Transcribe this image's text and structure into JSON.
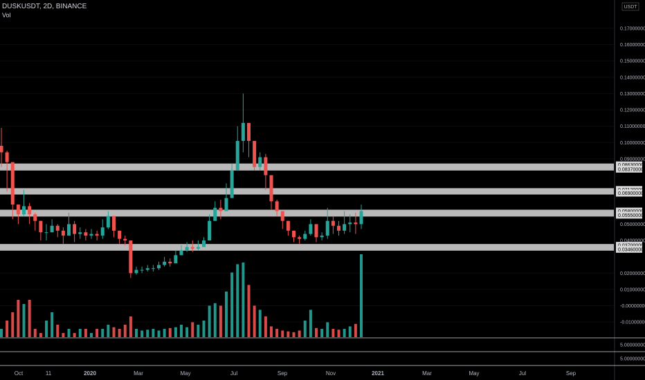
{
  "header": {
    "symbol_line": "DUSKUSDT, 2D, BINANCE",
    "volume_label": "Vol"
  },
  "axis": {
    "currency": "USDT"
  },
  "colors": {
    "up": "#26a69a",
    "down": "#ef5350",
    "zone": "#d9d9d9",
    "volume_up": "#26a69a",
    "volume_down": "#ef5350"
  },
  "chart_data": {
    "type": "candlestick",
    "symbol": "DUSKUSDT",
    "interval": "2D",
    "exchange": "BINANCE",
    "y_ticks": [
      "0.17000000",
      "0.16000000",
      "0.15000000",
      "0.14000000",
      "0.13000000",
      "0.12000000",
      "0.11000000",
      "0.10000000",
      "0.09000000",
      "0.02000000",
      "0.01000000",
      "-0.00000000",
      "-0.01000000"
    ],
    "y_tick_values": [
      0.17,
      0.16,
      0.15,
      0.14,
      0.13,
      0.12,
      0.11,
      0.1,
      0.09,
      0.02,
      0.01,
      0.0,
      -0.01
    ],
    "partially_hidden_ticks": [
      {
        "label": "0.05000000",
        "value": 0.05
      },
      {
        "label": "0.04000000",
        "value": 0.04
      }
    ],
    "ylim": [
      -0.015,
      0.178
    ],
    "zones": [
      {
        "upper": "0.08630000",
        "lower": "0.08370000",
        "upper_value": 0.0863,
        "lower_value": 0.0837
      },
      {
        "upper": "0.07120000",
        "lower": "0.06900000",
        "upper_value": 0.0712,
        "lower_value": 0.069
      },
      {
        "upper": "0.05800000",
        "lower": "0.05550000",
        "upper_value": 0.058,
        "lower_value": 0.0555
      },
      {
        "upper": "0.03700000",
        "lower": "0.03460000",
        "upper_value": 0.037,
        "lower_value": 0.0346
      }
    ],
    "volume_pane_ticks": [
      "5.00000000",
      "5.00000000"
    ],
    "time_labels": [
      "Oct",
      "11",
      "2020",
      "Mar",
      "May",
      "Jul",
      "Sep",
      "Nov",
      "2021",
      "Mar",
      "May",
      "Jul",
      "Sep"
    ],
    "bold_time_labels": [
      "2020",
      "2021"
    ],
    "price_path": [
      [
        0.094,
        0.109,
        0.085
      ],
      [
        0.088,
        0.095,
        0.07
      ],
      [
        0.062,
        0.07,
        0.053
      ],
      [
        0.056,
        0.062,
        0.05
      ],
      [
        0.061,
        0.071,
        0.055
      ],
      [
        0.056,
        0.063,
        0.05
      ],
      [
        0.052,
        0.057,
        0.046
      ],
      [
        0.045,
        0.052,
        0.04
      ],
      [
        0.045,
        0.05,
        0.04
      ],
      [
        0.049,
        0.053,
        0.045
      ],
      [
        0.046,
        0.05,
        0.042
      ],
      [
        0.043,
        0.048,
        0.038
      ],
      [
        0.05,
        0.057,
        0.043
      ],
      [
        0.044,
        0.052,
        0.039
      ],
      [
        0.045,
        0.048,
        0.041
      ],
      [
        0.043,
        0.047,
        0.04
      ],
      [
        0.044,
        0.047,
        0.041
      ],
      [
        0.043,
        0.046,
        0.04
      ],
      [
        0.048,
        0.053,
        0.041
      ],
      [
        0.055,
        0.058,
        0.047
      ],
      [
        0.046,
        0.052,
        0.042
      ],
      [
        0.041,
        0.046,
        0.038
      ],
      [
        0.04,
        0.043,
        0.037
      ],
      [
        0.02,
        0.032,
        0.017
      ],
      [
        0.022,
        0.024,
        0.019
      ],
      [
        0.022,
        0.024,
        0.02
      ],
      [
        0.023,
        0.025,
        0.021
      ],
      [
        0.023,
        0.025,
        0.021
      ],
      [
        0.025,
        0.027,
        0.022
      ],
      [
        0.027,
        0.03,
        0.024
      ],
      [
        0.026,
        0.029,
        0.024
      ],
      [
        0.031,
        0.034,
        0.027
      ],
      [
        0.034,
        0.037,
        0.031
      ],
      [
        0.036,
        0.039,
        0.033
      ],
      [
        0.035,
        0.04,
        0.033
      ],
      [
        0.036,
        0.04,
        0.034
      ],
      [
        0.04,
        0.042,
        0.036
      ],
      [
        0.052,
        0.056,
        0.043
      ],
      [
        0.06,
        0.064,
        0.052
      ],
      [
        0.058,
        0.065,
        0.053
      ],
      [
        0.066,
        0.075,
        0.058
      ],
      [
        0.083,
        0.087,
        0.074
      ],
      [
        0.101,
        0.11,
        0.09
      ],
      [
        0.112,
        0.13,
        0.094
      ],
      [
        0.101,
        0.111,
        0.091
      ],
      [
        0.085,
        0.098,
        0.083
      ],
      [
        0.091,
        0.094,
        0.083
      ],
      [
        0.08,
        0.093,
        0.071
      ],
      [
        0.064,
        0.072,
        0.059
      ],
      [
        0.058,
        0.065,
        0.055
      ],
      [
        0.052,
        0.058,
        0.047
      ],
      [
        0.046,
        0.052,
        0.043
      ],
      [
        0.042,
        0.046,
        0.039
      ],
      [
        0.041,
        0.043,
        0.038
      ],
      [
        0.044,
        0.046,
        0.04
      ],
      [
        0.05,
        0.053,
        0.043
      ],
      [
        0.042,
        0.05,
        0.039
      ],
      [
        0.043,
        0.045,
        0.04
      ],
      [
        0.052,
        0.06,
        0.041
      ],
      [
        0.049,
        0.055,
        0.044
      ],
      [
        0.046,
        0.052,
        0.043
      ],
      [
        0.05,
        0.058,
        0.044
      ],
      [
        0.051,
        0.056,
        0.045
      ],
      [
        0.05,
        0.057,
        0.044
      ],
      [
        0.058,
        0.062,
        0.047
      ]
    ],
    "volume_relative": [
      0.1,
      0.2,
      0.3,
      0.45,
      0.4,
      0.45,
      0.1,
      0.05,
      0.2,
      0.3,
      0.15,
      0.05,
      0.1,
      0.05,
      0.1,
      0.1,
      0.05,
      0.1,
      0.1,
      0.15,
      0.12,
      0.1,
      0.15,
      0.25,
      0.1,
      0.08,
      0.09,
      0.1,
      0.08,
      0.1,
      0.11,
      0.12,
      0.15,
      0.12,
      0.18,
      0.15,
      0.2,
      0.38,
      0.41,
      0.38,
      0.55,
      0.78,
      0.88,
      0.9,
      0.63,
      0.38,
      0.33,
      0.25,
      0.13,
      0.1,
      0.08,
      0.07,
      0.06,
      0.08,
      0.2,
      0.33,
      0.11,
      0.1,
      0.18,
      0.1,
      0.09,
      0.1,
      0.13,
      0.16,
      1.0
    ]
  }
}
